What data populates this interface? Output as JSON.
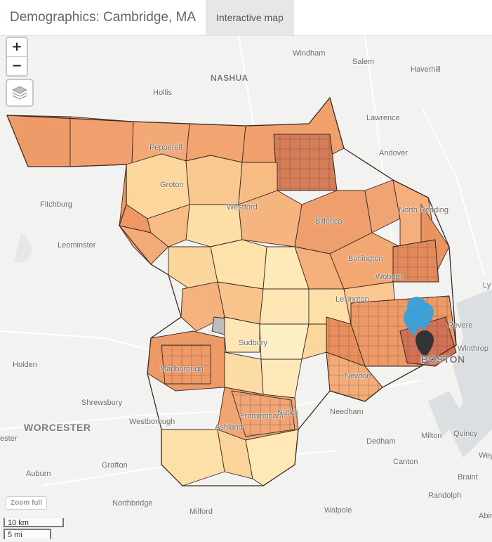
{
  "header": {
    "title": "Demographics: Cambridge, MA",
    "tab_label": "Interactive map"
  },
  "controls": {
    "zoom_in": "+",
    "zoom_out": "−",
    "zoom_full": "Zoom full",
    "layers_icon": "layers-icon"
  },
  "scale": {
    "km": "10 km",
    "mi": "5 mi"
  },
  "places": {
    "windham": "Windham",
    "salem": "Salem",
    "haverhill": "Haverhill",
    "nashua": "NASHUA",
    "hollis": "Hollis",
    "lawrence": "Lawrence",
    "andover": "Andover",
    "pepperell": "Pepperell",
    "groton": "Groton",
    "fitchburg": "Fitchburg",
    "westford": "Westford",
    "north_reading": "North Reading",
    "leominster": "Leominster",
    "billerica": "Billerica",
    "burlington": "Burlington",
    "woburn": "Woburn",
    "lexington": "Lexington",
    "revere": "Revere",
    "lynn": "Ly",
    "winthrop": "Winthrop",
    "sudbury": "Sudbury",
    "boston": "BOSTON",
    "holden": "Holden",
    "marlborough": "Marlborough",
    "newton": "Newton",
    "needham": "Needham",
    "shrewsbury": "Shrewsbury",
    "westborough": "Westborough",
    "ashland": "Ashland",
    "framingham": "Framingham",
    "natick": "Natick",
    "worcester": "WORCESTER",
    "leicester": "ester",
    "dedham": "Dedham",
    "milton": "Milton",
    "quincy": "Quincy",
    "weymouth": "Wey",
    "grafton": "Grafton",
    "auburn": "Auburn",
    "braintree": "Braint",
    "northbridge": "Northbridge",
    "randolph": "Randolph",
    "walpole": "Walpole",
    "milford": "Milford",
    "abington": "Abir",
    "canton": "Canton"
  },
  "colors": {
    "water": "#dfe3e6",
    "land": "#f2f2f1",
    "choropleth_light": "#fde5b0",
    "choropleth_mid": "#f6b57f",
    "choropleth_dark": "#c96a50",
    "marker_blue": "#3ca0d8",
    "marker_dark": "#333333"
  }
}
